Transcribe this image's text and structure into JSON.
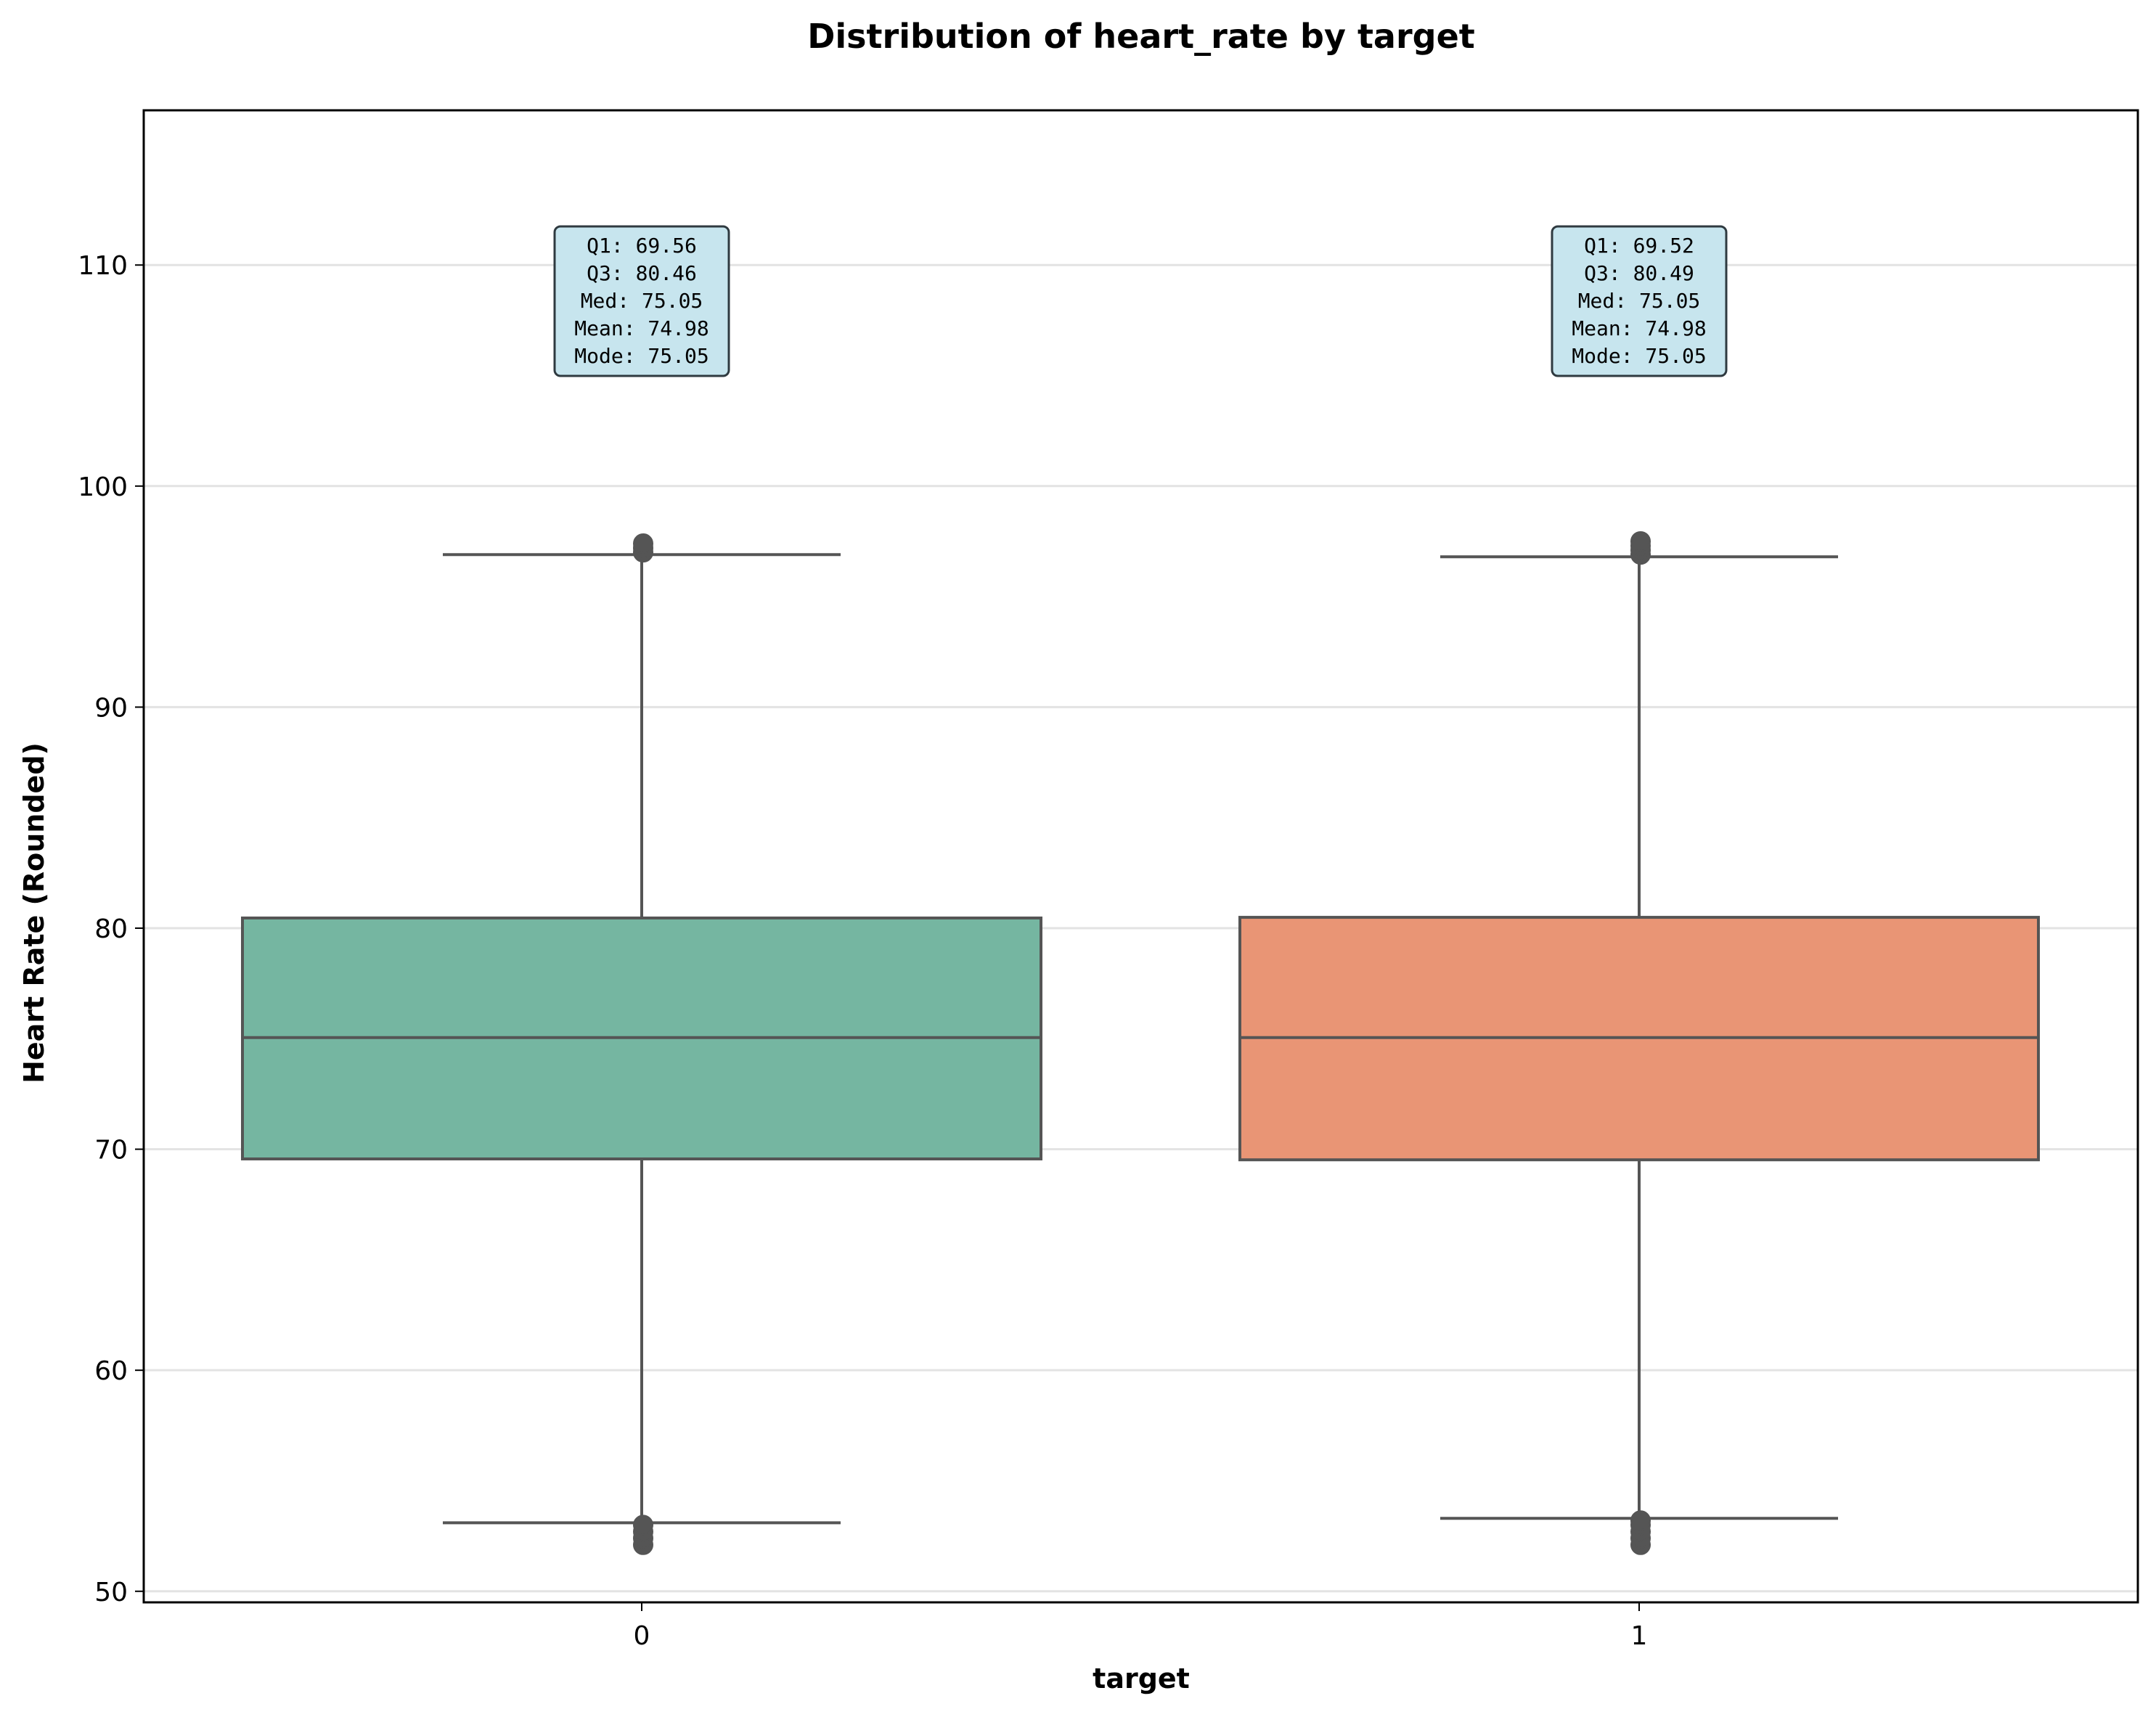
{
  "chart_data": {
    "type": "box",
    "title": "Distribution of heart_rate by target",
    "xlabel": "target",
    "ylabel": "Heart Rate (Rounded)",
    "ylim": [
      49.5,
      117
    ],
    "yticks": [
      50,
      60,
      70,
      80,
      90,
      100,
      110
    ],
    "grid": "horizontal",
    "categories": [
      "0",
      "1"
    ],
    "colors": [
      "#75b6a1",
      "#e99575"
    ],
    "boxes": [
      {
        "category": "0",
        "q1": 69.56,
        "median": 75.05,
        "q3": 80.46,
        "whisker_low": 53.1,
        "whisker_high": 96.9,
        "outliers_low": [
          52.1,
          52.4,
          52.7,
          53.0
        ],
        "outliers_high": [
          97.0,
          97.2,
          97.4
        ],
        "stats": [
          "Q1: 69.56",
          "Q3: 80.46",
          "Med: 75.05",
          "Mean: 74.98",
          "Mode: 75.05"
        ]
      },
      {
        "category": "1",
        "q1": 69.52,
        "median": 75.05,
        "q3": 80.49,
        "whisker_low": 53.3,
        "whisker_high": 96.8,
        "outliers_low": [
          52.1,
          52.4,
          52.7,
          53.0,
          53.2
        ],
        "outliers_high": [
          96.9,
          97.1,
          97.3,
          97.5
        ],
        "stats": [
          "Q1: 69.52",
          "Q3: 80.49",
          "Med: 75.05",
          "Mean: 74.98",
          "Mode: 75.05"
        ]
      }
    ]
  }
}
